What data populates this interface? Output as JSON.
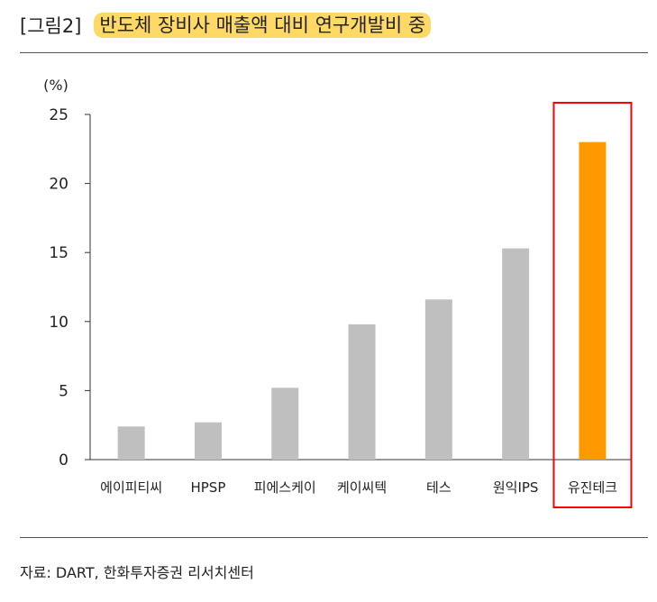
{
  "figure": {
    "label": "[그림2]",
    "title": "반도체 장비사 매출액 대비 연구개발비 중",
    "source": "자료: DART, 한화투자증권 리서치센터"
  },
  "chart_data": {
    "type": "bar",
    "ylabel": "(%)",
    "ylim": [
      0,
      25
    ],
    "yticks": [
      0,
      5,
      10,
      15,
      20,
      25
    ],
    "categories": [
      "에이피티씨",
      "HPSP",
      "피에스케이",
      "케이씨텍",
      "테스",
      "원익IPS",
      "유진테크"
    ],
    "values": [
      2.4,
      2.7,
      5.2,
      9.8,
      11.6,
      15.3,
      23.0
    ],
    "highlight_category": "유진테크",
    "colors": {
      "default": "#bfbfbf",
      "highlight": "#ff9900",
      "highlight_box": "#ff0000"
    },
    "grid": false,
    "legend": "none"
  }
}
